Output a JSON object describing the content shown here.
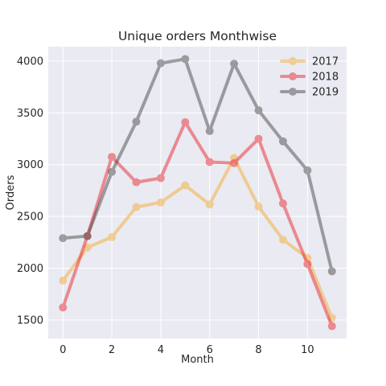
{
  "chart_data": {
    "type": "line",
    "title": "Unique orders Monthwise",
    "xlabel": "Month",
    "ylabel": "Orders",
    "x": [
      0,
      1,
      2,
      3,
      4,
      5,
      6,
      7,
      8,
      9,
      10,
      11
    ],
    "xticks": [
      0,
      2,
      4,
      6,
      8,
      10
    ],
    "yticks": [
      1500,
      2000,
      2500,
      3000,
      3500,
      4000
    ],
    "xlim": [
      -0.6,
      11.6
    ],
    "ylim": [
      1320,
      4140
    ],
    "grid": true,
    "legend_position": "top-right",
    "series": [
      {
        "name": "2017",
        "color": "#f5a623",
        "values": [
          1880,
          2200,
          2300,
          2590,
          2635,
          2800,
          2615,
          3065,
          2595,
          2275,
          2100,
          1520
        ]
      },
      {
        "name": "2018",
        "color": "#e8151d",
        "values": [
          1620,
          2310,
          3075,
          2830,
          2870,
          3410,
          3025,
          3015,
          3250,
          2625,
          2040,
          1440
        ]
      },
      {
        "name": "2019",
        "color": "#3a3a3a",
        "values": [
          2290,
          2310,
          2930,
          3415,
          3980,
          4020,
          3325,
          3975,
          3525,
          3225,
          2945,
          1970
        ]
      }
    ]
  }
}
